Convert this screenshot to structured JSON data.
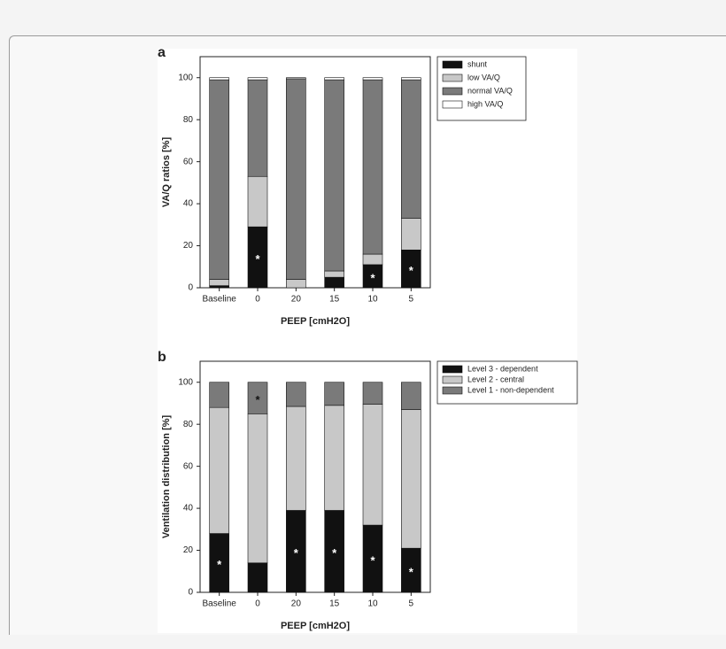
{
  "chart_data": [
    {
      "type": "stacked-bar",
      "panel": "a",
      "ylabel": "VA/Q ratios [%]",
      "xlabel": "PEEP [cmH2O]",
      "categories": [
        "Baseline",
        "0",
        "20",
        "15",
        "10",
        "5"
      ],
      "ylim": [
        0,
        110
      ],
      "yticks": [
        0,
        20,
        40,
        60,
        80,
        100
      ],
      "series": [
        {
          "name": "shunt",
          "color": "#111111",
          "values": [
            1,
            29,
            0,
            5,
            11,
            18
          ]
        },
        {
          "name": "low VA/Q",
          "color": "#c8c8c8",
          "values": [
            3,
            24,
            4,
            3,
            5,
            15
          ]
        },
        {
          "name": "normal VA/Q",
          "color": "#7a7a7a",
          "values": [
            95,
            46,
            95.5,
            91,
            83,
            66
          ]
        },
        {
          "name": "high VA/Q",
          "color": "#ffffff",
          "values": [
            1,
            1,
            0.5,
            1,
            1,
            1
          ]
        }
      ],
      "annotations": [
        {
          "text": "*",
          "category": "0",
          "series": "shunt",
          "color": "#ffffff"
        },
        {
          "text": "*",
          "category": "10",
          "series": "shunt",
          "color": "#ffffff"
        },
        {
          "text": "*",
          "category": "5",
          "series": "shunt",
          "color": "#ffffff"
        }
      ]
    },
    {
      "type": "stacked-bar",
      "panel": "b",
      "ylabel": "Ventilation distribution [%]",
      "xlabel": "PEEP [cmH2O]",
      "categories": [
        "Baseline",
        "0",
        "20",
        "15",
        "10",
        "5"
      ],
      "ylim": [
        0,
        110
      ],
      "yticks": [
        0,
        20,
        40,
        60,
        80,
        100
      ],
      "series": [
        {
          "name": "Level 3 - dependent",
          "color": "#111111",
          "values": [
            28,
            14,
            39,
            39,
            32,
            21
          ]
        },
        {
          "name": "Level 2 - central",
          "color": "#c8c8c8",
          "values": [
            60,
            71,
            49.5,
            50,
            57.5,
            66
          ]
        },
        {
          "name": "Level 1 - non-dependent",
          "color": "#7a7a7a",
          "values": [
            12,
            15,
            11.5,
            11,
            10.5,
            13
          ]
        }
      ],
      "annotations": [
        {
          "text": "*",
          "category": "Baseline",
          "series": "Level 3 - dependent",
          "color": "#ffffff"
        },
        {
          "text": "*",
          "category": "20",
          "series": "Level 3 - dependent",
          "color": "#ffffff"
        },
        {
          "text": "*",
          "category": "15",
          "series": "Level 3 - dependent",
          "color": "#ffffff"
        },
        {
          "text": "*",
          "category": "10",
          "series": "Level 3 - dependent",
          "color": "#ffffff"
        },
        {
          "text": "*",
          "category": "5",
          "series": "Level 3 - dependent",
          "color": "#ffffff"
        },
        {
          "text": "*",
          "category": "0",
          "series": "Level 1 - non-dependent",
          "color": "#111111"
        }
      ]
    }
  ]
}
